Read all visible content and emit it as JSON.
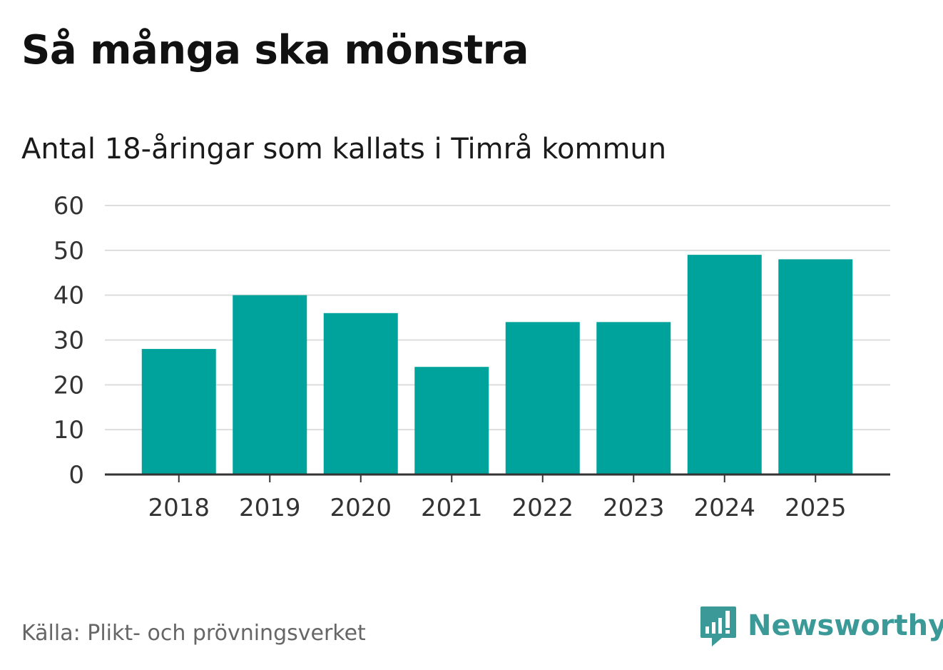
{
  "header": {
    "title": "Så många ska mönstra",
    "subtitle": "Antal 18-åringar som kallats i Timrå kommun"
  },
  "footer": {
    "source": "Källa: Plikt- och prövningsverket",
    "brand": "Newsworthy",
    "logo_icon": "newsworthy-logo-icon"
  },
  "colors": {
    "bar": "#00a39b",
    "grid": "#dddddd",
    "axis": "#333333",
    "tick_text": "#333333",
    "brand": "#3b9a97"
  },
  "chart_data": {
    "type": "bar",
    "title": "Så många ska mönstra",
    "subtitle": "Antal 18-åringar som kallats i Timrå kommun",
    "xlabel": "",
    "ylabel": "",
    "categories": [
      "2018",
      "2019",
      "2020",
      "2021",
      "2022",
      "2023",
      "2024",
      "2025"
    ],
    "values": [
      28,
      40,
      36,
      24,
      34,
      34,
      49,
      48
    ],
    "ylim": [
      0,
      60
    ],
    "yticks": [
      0,
      10,
      20,
      30,
      40,
      50,
      60
    ],
    "grid": true,
    "legend": "none"
  }
}
